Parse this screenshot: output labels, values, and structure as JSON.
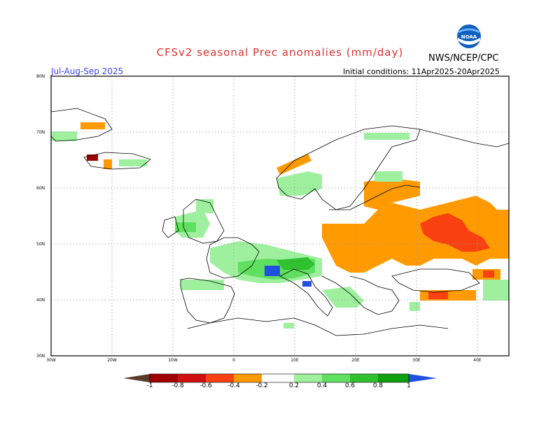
{
  "title": "CFSv2 seasonal Prec anomalies (mm/day)",
  "agency": "NWS/NCEP/CPC",
  "logo_text": "NOAA",
  "period": "Jul-Aug-Sep 2025",
  "initial_conditions": "Initial conditions: 11Apr2025-20Apr2025",
  "lat_labels": [
    "80N",
    "70N",
    "60N",
    "50N",
    "40N",
    "30N"
  ],
  "lon_labels": [
    "30W",
    "20W",
    "10W",
    "0",
    "10E",
    "20E",
    "30E",
    "40E"
  ],
  "colorbar": {
    "labels": [
      "-1",
      "-0.8",
      "-0.6",
      "-0.4",
      "-0.2",
      "0.2",
      "0.4",
      "0.6",
      "0.8",
      "1"
    ],
    "colors": [
      "#5a3a2a",
      "#a00000",
      "#d01010",
      "#f84010",
      "#ff9a00",
      "#ffffff",
      "#9ef09e",
      "#60e060",
      "#30c030",
      "#10a010",
      "#2050e0"
    ]
  },
  "map": {
    "lon_range": [
      -30,
      45
    ],
    "lat_range": [
      30,
      80
    ],
    "variable": "precipitation anomaly (mm/day)"
  }
}
